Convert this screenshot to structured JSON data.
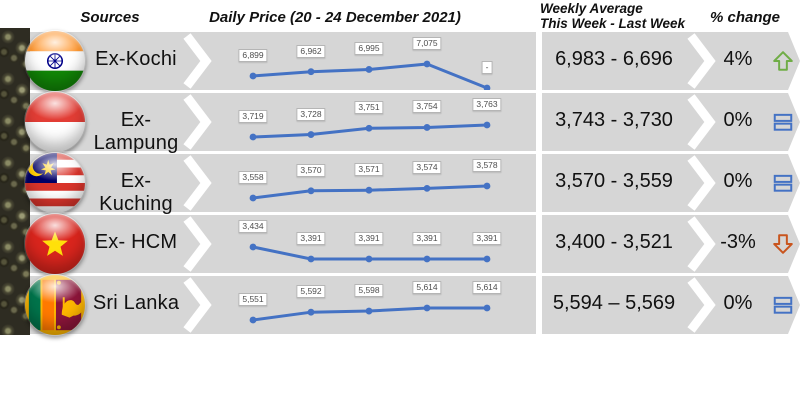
{
  "header": {
    "sources": "Sources",
    "daily_price": "Daily Price (20 - 24 December 2021)",
    "weekly_avg_line1": "Weekly Average",
    "weekly_avg_line2": "This Week - Last Week",
    "pct_change": "% change"
  },
  "colors": {
    "band": "#D6D6D6",
    "line": "#4472C4",
    "up_arrow": "#70AD47",
    "down_arrow": "#C9551E",
    "equal_icon": "#4472C4"
  },
  "rows": [
    {
      "source": "Ex-Kochi",
      "flag": "india",
      "labels": [
        "6,899",
        "6,962",
        "6,995",
        "7,075",
        "-"
      ],
      "weekly": "6,983 - 6,696",
      "change": "4%",
      "trend": "up"
    },
    {
      "source": "Ex-Lampung",
      "flag": "indonesia",
      "labels": [
        "3,719",
        "3,728",
        "3,751",
        "3,754",
        "3,763"
      ],
      "weekly": "3,743 - 3,730",
      "change": "0%",
      "trend": "equal"
    },
    {
      "source": "Ex-Kuching",
      "flag": "malaysia",
      "labels": [
        "3,558",
        "3,570",
        "3,571",
        "3,574",
        "3,578"
      ],
      "weekly": "3,570 - 3,559",
      "change": "0%",
      "trend": "equal"
    },
    {
      "source": "Ex- HCM",
      "flag": "vietnam",
      "labels": [
        "3,434",
        "3,391",
        "3,391",
        "3,391",
        "3,391"
      ],
      "weekly": "3,400 - 3,521",
      "change": "-3%",
      "trend": "down"
    },
    {
      "source": "Sri Lanka",
      "flag": "sri_lanka",
      "labels": [
        "5,551",
        "5,592",
        "5,598",
        "5,614",
        "5,614"
      ],
      "weekly": "5,594 – 5,569",
      "change": "0%",
      "trend": "equal"
    }
  ],
  "chart_data": {
    "type": "line",
    "title": "Daily Price (20 - 24 December 2021)",
    "x": [
      "2021-12-20",
      "2021-12-21",
      "2021-12-22",
      "2021-12-23",
      "2021-12-24"
    ],
    "series": [
      {
        "name": "Ex-Kochi",
        "values": [
          6899,
          6962,
          6995,
          7075,
          null
        ]
      },
      {
        "name": "Ex-Lampung",
        "values": [
          3719,
          3728,
          3751,
          3754,
          3763
        ]
      },
      {
        "name": "Ex-Kuching",
        "values": [
          3558,
          3570,
          3571,
          3574,
          3578
        ]
      },
      {
        "name": "Ex- HCM",
        "values": [
          3434,
          3391,
          3391,
          3391,
          3391
        ]
      },
      {
        "name": "Sri Lanka",
        "values": [
          5551,
          5592,
          5598,
          5614,
          5614
        ]
      }
    ],
    "weekly_average_this_vs_last": [
      "6,983 - 6,696",
      "3,743 - 3,730",
      "3,570 - 3,559",
      "3,400 - 3,521",
      "5,594 – 5,569"
    ],
    "pct_change": [
      "4%",
      "0%",
      "0%",
      "-3%",
      "0%"
    ],
    "legend_position": "none",
    "grid": false
  }
}
